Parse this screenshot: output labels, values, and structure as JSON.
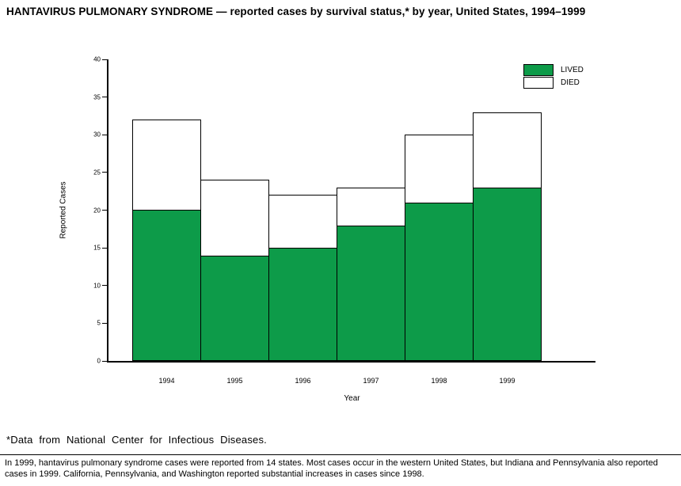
{
  "page": {
    "title": "HANTAVIRUS PULMONARY SYNDROME — reported cases by survival status,* by year, United States, 1994–1999",
    "footnote": "*Data from National Center for Infectious Diseases.",
    "bottom_note": "In 1999, hantavirus pulmonary syndrome cases were reported from 14 states. Most cases occur in the western United States, but Indiana and Pennsylvania also reported cases in 1999. California, Pennsylvania, and Washington reported substantial increases in cases since 1998."
  },
  "chart_data": {
    "type": "bar",
    "stacked": true,
    "categories": [
      "1994",
      "1995",
      "1996",
      "1997",
      "1998",
      "1999"
    ],
    "series": [
      {
        "name": "LIVED",
        "color": "#0d9b49",
        "values": [
          20,
          14,
          15,
          18,
          21,
          23
        ]
      },
      {
        "name": "DIED",
        "color": "#ffffff",
        "values": [
          12,
          10,
          7,
          5,
          9,
          10
        ]
      }
    ],
    "totals": [
      32,
      24,
      22,
      23,
      30,
      33
    ],
    "title": "HANTAVIRUS PULMONARY SYNDROME — reported cases by survival status, by year, United States, 1994–1999",
    "xlabel": "Year",
    "ylabel": "Reported Cases",
    "ylim": [
      0,
      40
    ],
    "yticks": [
      0,
      5,
      10,
      15,
      20,
      25,
      30,
      35,
      40
    ],
    "grid": false,
    "legend_position": "top-right"
  }
}
